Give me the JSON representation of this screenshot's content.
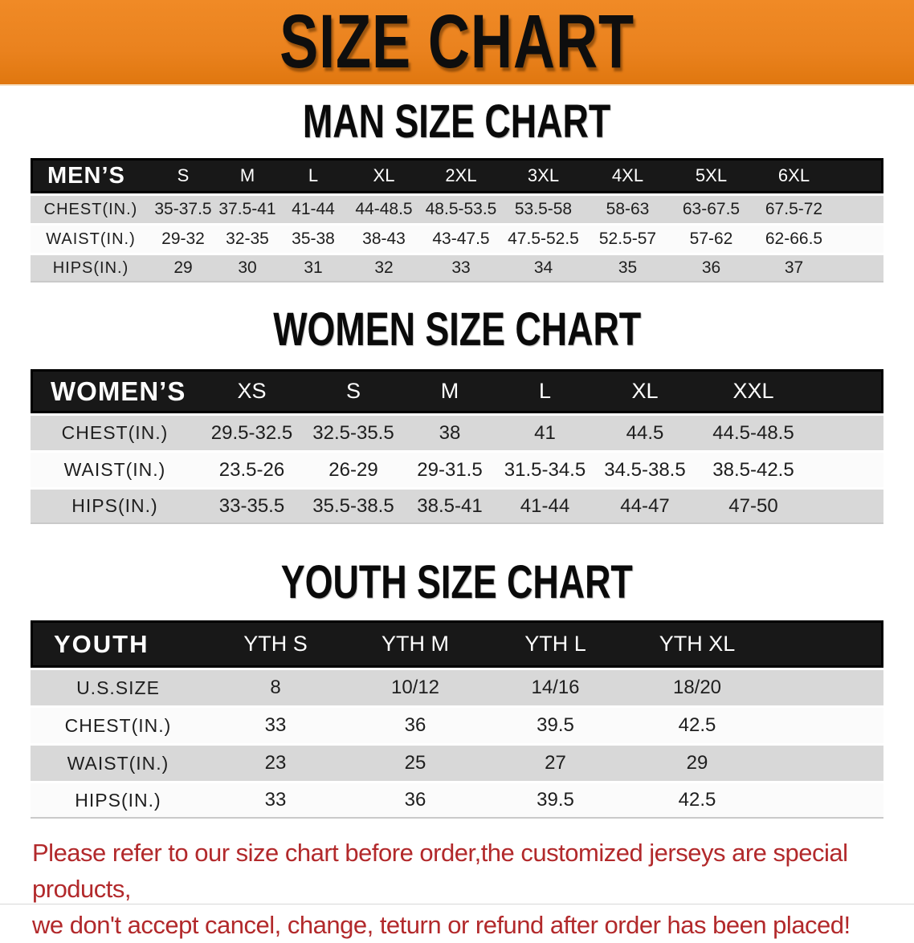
{
  "banner": {
    "title": "SIZE CHART",
    "bg_color": "#EA821E"
  },
  "colors": {
    "table_header_bg": "#181818",
    "row_gray": "#D8D8D8",
    "row_white": "#FBFBFB",
    "disclaimer_red": "#B2292B"
  },
  "sections": [
    {
      "heading": "MAN SIZE CHART",
      "table": {
        "header_label": "MEN’S",
        "sizes": [
          "S",
          "M",
          "L",
          "XL",
          "2XL",
          "3XL",
          "4XL",
          "5XL",
          "6XL"
        ],
        "rows": [
          {
            "label": "CHEST(IN.)",
            "values": [
              "35-37.5",
              "37.5-41",
              "41-44",
              "44-48.5",
              "48.5-53.5",
              "53.5-58",
              "58-63",
              "63-67.5",
              "67.5-72"
            ]
          },
          {
            "label": "WAIST(IN.)",
            "values": [
              "29-32",
              "32-35",
              "35-38",
              "38-43",
              "43-47.5",
              "47.5-52.5",
              "52.5-57",
              "57-62",
              "62-66.5"
            ]
          },
          {
            "label": "HIPS(IN.)",
            "values": [
              "29",
              "30",
              "31",
              "32",
              "33",
              "34",
              "35",
              "36",
              "37"
            ]
          }
        ]
      }
    },
    {
      "heading": "WOMEN SIZE CHART",
      "table": {
        "header_label": "WOMEN’S",
        "sizes": [
          "XS",
          "S",
          "M",
          "L",
          "XL",
          "XXL"
        ],
        "rows": [
          {
            "label": "CHEST(IN.)",
            "values": [
              "29.5-32.5",
              "32.5-35.5",
              "38",
              "41",
              "44.5",
              "44.5-48.5"
            ]
          },
          {
            "label": "WAIST(IN.)",
            "values": [
              "23.5-26",
              "26-29",
              "29-31.5",
              "31.5-34.5",
              "34.5-38.5",
              "38.5-42.5"
            ]
          },
          {
            "label": "HIPS(IN.)",
            "values": [
              "33-35.5",
              "35.5-38.5",
              "38.5-41",
              "41-44",
              "44-47",
              "47-50"
            ]
          }
        ]
      }
    },
    {
      "heading": "YOUTH SIZE CHART",
      "table": {
        "header_label": "YOUTH",
        "sizes": [
          "YTH S",
          "YTH M",
          "YTH L",
          "YTH XL"
        ],
        "rows": [
          {
            "label": "U.S.SIZE",
            "values": [
              "8",
              "10/12",
              "14/16",
              "18/20"
            ]
          },
          {
            "label": "CHEST(IN.)",
            "values": [
              "33",
              "36",
              "39.5",
              "42.5"
            ]
          },
          {
            "label": "WAIST(IN.)",
            "values": [
              "23",
              "25",
              "27",
              "29"
            ]
          },
          {
            "label": "HIPS(IN.)",
            "values": [
              "33",
              "36",
              "39.5",
              "42.5"
            ]
          }
        ]
      }
    }
  ],
  "disclaimer": {
    "line1": "Please refer to our size chart before order,the customized jerseys are special products,",
    "line2": "we don't accept cancel, change, teturn or refund after order has been placed!"
  }
}
